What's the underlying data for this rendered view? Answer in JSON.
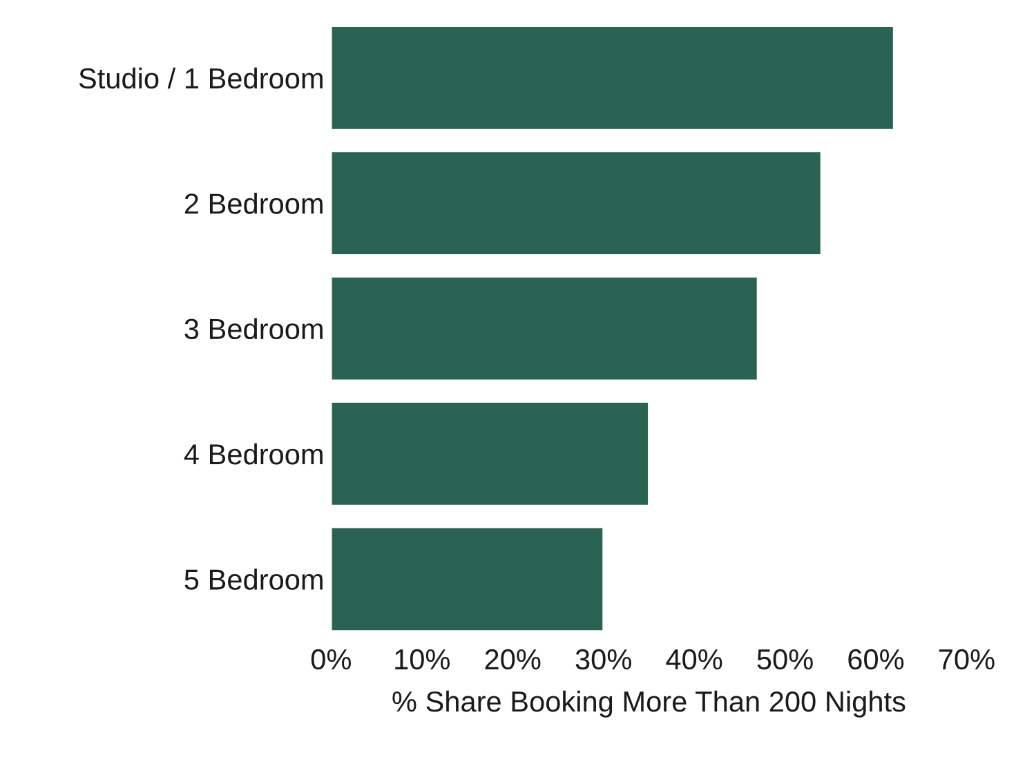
{
  "chart_data": {
    "type": "bar",
    "orientation": "horizontal",
    "categories": [
      "Studio / 1 Bedroom",
      "2 Bedroom",
      "3 Bedroom",
      "4 Bedroom",
      "5 Bedroom"
    ],
    "values": [
      62,
      54,
      47,
      35,
      30
    ],
    "color": "#2b6352",
    "xlabel": "% Share Booking More Than 200 Nights",
    "xlim": [
      0,
      70
    ],
    "xticks": [
      {
        "value": 0,
        "label": "0%"
      },
      {
        "value": 10,
        "label": "10%"
      },
      {
        "value": 20,
        "label": "20%"
      },
      {
        "value": 30,
        "label": "30%"
      },
      {
        "value": 40,
        "label": "40%"
      },
      {
        "value": 50,
        "label": "50%"
      },
      {
        "value": 60,
        "label": "60%"
      },
      {
        "value": 70,
        "label": "70%"
      }
    ],
    "grid": false,
    "legend": false
  }
}
